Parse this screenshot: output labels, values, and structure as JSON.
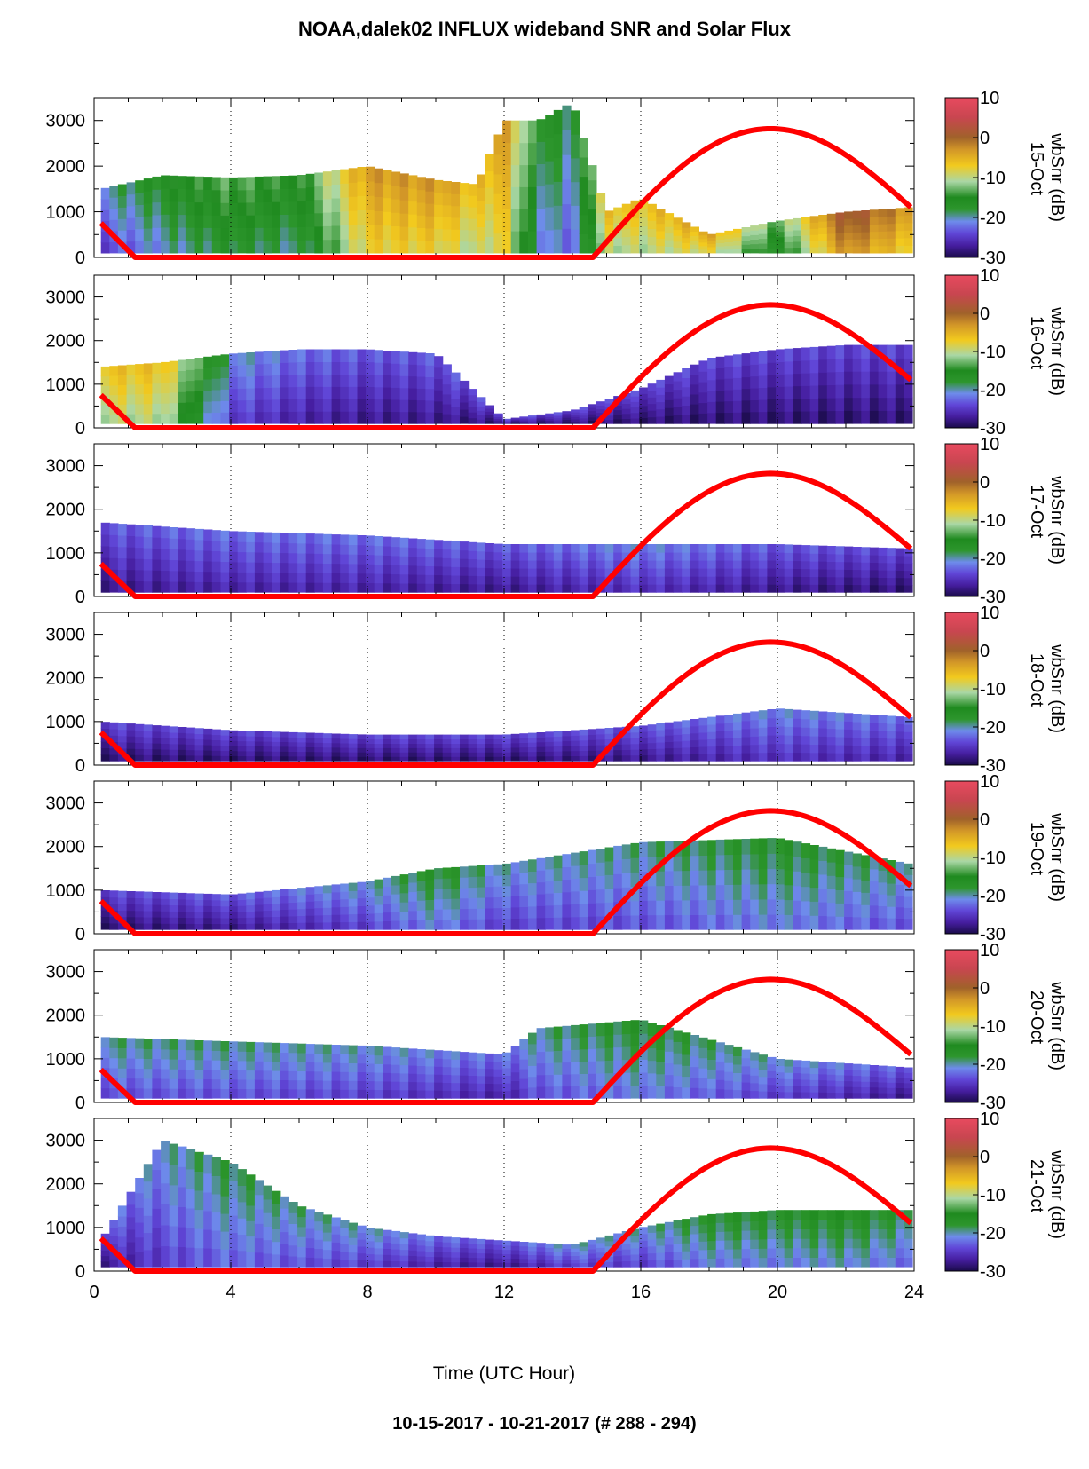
{
  "title": "NOAA,dalek02 INFLUX wideband SNR and Solar Flux",
  "footer": "10-15-2017 - 10-21-2017    (# 288 - 294)",
  "chart_data": {
    "type": "heatmap",
    "xlabel": "Time (UTC Hour)",
    "xlim": [
      0,
      24
    ],
    "xticks": [
      0,
      4,
      8,
      12,
      16,
      20,
      24
    ],
    "ylim": [
      0,
      3500
    ],
    "yticks": [
      0,
      1000,
      2000,
      3000
    ],
    "colorbar": {
      "label": "wbSnr (dB)",
      "range": [
        -30,
        10
      ],
      "ticks": [
        10,
        0,
        -10,
        -20,
        -30
      ],
      "colors": [
        "#1a0b4a",
        "#5a2ab0",
        "#6b63dd",
        "#8fb0ea",
        "#1f8a1f",
        "#a8d8a0",
        "#f2ca1e",
        "#a0622a",
        "#e84a5f"
      ]
    },
    "solar_flux_color": "#ff0000",
    "panels": [
      {
        "date": "15-Oct",
        "snr_profile": {
          "hours": [
            0.2,
            2,
            4,
            6,
            8,
            10,
            11.2,
            12,
            13,
            14,
            15,
            16,
            18,
            20,
            22,
            23.9
          ],
          "top": [
            1500,
            1800,
            1750,
            1800,
            2000,
            1700,
            1600,
            3000,
            3000,
            3400,
            1000,
            1300,
            500,
            800,
            1000,
            1100
          ],
          "snr": [
            -22,
            -18,
            -15,
            -17,
            -5,
            -5,
            -8,
            -5,
            -18,
            -20,
            -8,
            -8,
            -6,
            -15,
            0,
            -5
          ]
        },
        "solar_flux": {
          "start": [
            0.2,
            750
          ],
          "min_hours": [
            1.2,
            14.6
          ],
          "peak": [
            19.8,
            2820
          ],
          "end": [
            23.9,
            1100
          ]
        }
      },
      {
        "date": "16-Oct",
        "snr_profile": {
          "hours": [
            0.2,
            2,
            4,
            6,
            8,
            10,
            12,
            14,
            16,
            18,
            20,
            22,
            23.9
          ],
          "top": [
            1400,
            1500,
            1700,
            1800,
            1800,
            1700,
            200,
            400,
            900,
            1600,
            1800,
            1900,
            1900
          ],
          "snr": [
            -8,
            -8,
            -22,
            -24,
            -25,
            -25,
            -26,
            -26,
            -26,
            -26,
            -26,
            -26,
            -26
          ]
        },
        "solar_flux": {
          "start": [
            0.2,
            750
          ],
          "min_hours": [
            1.2,
            14.6
          ],
          "peak": [
            19.8,
            2820
          ],
          "end": [
            23.9,
            1100
          ]
        }
      },
      {
        "date": "17-Oct",
        "snr_profile": {
          "hours": [
            0.2,
            4,
            8,
            12,
            16,
            20,
            23.9
          ],
          "top": [
            1700,
            1500,
            1400,
            1200,
            1200,
            1200,
            1100
          ],
          "snr": [
            -25,
            -24,
            -24,
            -25,
            -23,
            -25,
            -26
          ]
        },
        "solar_flux": {
          "start": [
            0.2,
            750
          ],
          "min_hours": [
            1.2,
            14.6
          ],
          "peak": [
            19.8,
            2820
          ],
          "end": [
            23.9,
            1100
          ]
        }
      },
      {
        "date": "18-Oct",
        "snr_profile": {
          "hours": [
            0.2,
            4,
            8,
            12,
            16,
            20,
            23.9
          ],
          "top": [
            1000,
            800,
            700,
            700,
            900,
            1300,
            1100
          ],
          "snr": [
            -26,
            -26,
            -26,
            -26,
            -25,
            -23,
            -24
          ]
        },
        "solar_flux": {
          "start": [
            0.2,
            750
          ],
          "min_hours": [
            1.2,
            14.6
          ],
          "peak": [
            19.8,
            2820
          ],
          "end": [
            23.9,
            1100
          ]
        }
      },
      {
        "date": "19-Oct",
        "snr_profile": {
          "hours": [
            0.2,
            4,
            8,
            10,
            12,
            16,
            20,
            23.9
          ],
          "top": [
            1000,
            900,
            1200,
            1500,
            1600,
            2100,
            2200,
            1600
          ],
          "snr": [
            -26,
            -25,
            -22,
            -19,
            -22,
            -21,
            -19,
            -21
          ]
        },
        "solar_flux": {
          "start": [
            0.2,
            750
          ],
          "min_hours": [
            1.2,
            14.6
          ],
          "peak": [
            19.8,
            2820
          ],
          "end": [
            23.9,
            1100
          ]
        }
      },
      {
        "date": "20-Oct",
        "snr_profile": {
          "hours": [
            0.2,
            4,
            8,
            12,
            13,
            16,
            20,
            23.9
          ],
          "top": [
            1500,
            1400,
            1300,
            1100,
            1700,
            1900,
            1000,
            800
          ],
          "snr": [
            -21,
            -21,
            -22,
            -24,
            -21,
            -19,
            -22,
            -25
          ]
        },
        "solar_flux": {
          "start": [
            0.2,
            750
          ],
          "min_hours": [
            1.2,
            14.6
          ],
          "peak": [
            19.8,
            2820
          ],
          "end": [
            23.9,
            1100
          ]
        }
      },
      {
        "date": "21-Oct",
        "snr_profile": {
          "hours": [
            0.2,
            2,
            4,
            6,
            8,
            10,
            12,
            14,
            16,
            18,
            20,
            22,
            23.9
          ],
          "top": [
            700,
            3000,
            2500,
            1500,
            1000,
            800,
            700,
            600,
            1000,
            1300,
            1400,
            1400,
            1400
          ],
          "snr": [
            -25,
            -22,
            -20,
            -21,
            -22,
            -24,
            -25,
            -22,
            -22,
            -19,
            -19,
            -18,
            -20
          ]
        },
        "solar_flux": {
          "start": [
            0.2,
            750
          ],
          "min_hours": [
            1.2,
            14.6
          ],
          "peak": [
            19.8,
            2820
          ],
          "end": [
            23.9,
            1100
          ]
        }
      }
    ]
  }
}
